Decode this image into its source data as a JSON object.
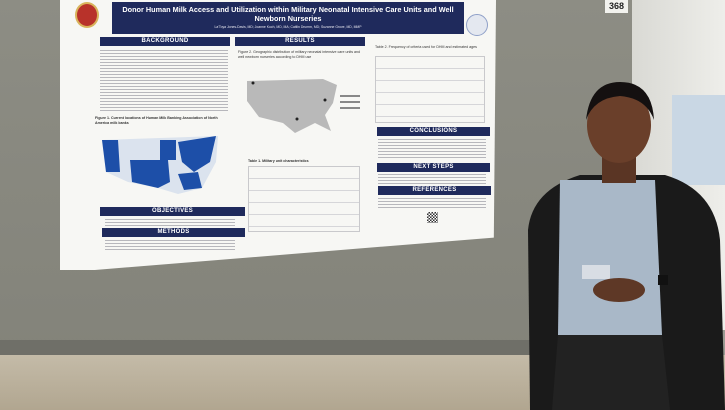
{
  "booth_number": "368",
  "poster": {
    "title": "Donor Human Milk Access and Utilization within Military Neonatal Intensive Care Units and Well Newborn Nurseries",
    "authors": "La'Toya Jones-Davis, MD; Joanne Kuch, MD, MA; Caitlin Drumm, MD; Suzanne Grove, MD, MMP",
    "sections": {
      "background": "BACKGROUND",
      "results": "RESULTS",
      "conclusions": "CONCLUSIONS",
      "next_steps": "NEXT STEPS",
      "references": "REFERENCES",
      "objectives": "OBJECTIVES",
      "methods": "METHODS"
    },
    "figure1_caption": "Figure 1. Current locations of Human Milk Banking Association of North America milk banks",
    "figure2_caption": "Figure 2. Geographic distribution of military neonatal intensive care units and well newborn nurseries according to DHM use",
    "table1_caption": "Table 1. Military unit characteristics",
    "table2_caption": "Table 2. Frequency of criteria used for DHM and estimated ages",
    "colors": {
      "header_navy": "#1f2a5c",
      "map_blue": "#1d4fa8",
      "map_gray": "#b9b9b9"
    }
  }
}
